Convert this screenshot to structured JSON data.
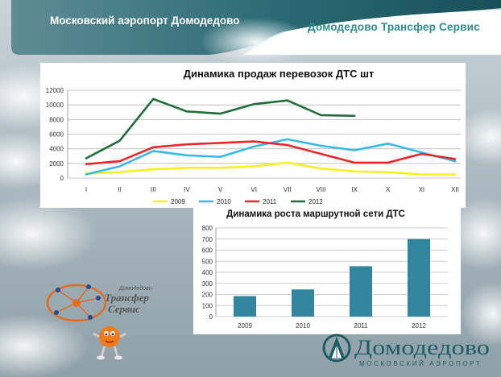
{
  "header": {
    "title": "Московский аэропорт Домодедово",
    "brand": "Домодедово Трансфер Сервис"
  },
  "logos": {
    "transfer_top": "Домодедово",
    "transfer_main_1": "Трансфер",
    "transfer_main_2": "Сервис",
    "airport_name": "Домодедово",
    "airport_sub": "Московский аэропорт"
  },
  "colors": {
    "header_band": "#1f5d66",
    "brand_text": "#2d8b8c",
    "bar_fill": "#31859c"
  },
  "chart_data": [
    {
      "type": "line",
      "title": "Динамика продаж перевозок  ДТС шт",
      "categories": [
        "I",
        "II",
        "III",
        "IV",
        "V",
        "VI",
        "VII",
        "VIII",
        "IX",
        "X",
        "XI",
        "XII"
      ],
      "ylim": [
        0,
        12000
      ],
      "yticks": [
        "0",
        "2000",
        "4000",
        "6000",
        "8000",
        "10000",
        "12000"
      ],
      "grid": true,
      "legend": "bottom",
      "series": [
        {
          "name": "2009",
          "color": "#f5f020",
          "values": [
            600,
            800,
            1200,
            1400,
            1400,
            1600,
            2100,
            1300,
            900,
            800,
            500,
            500
          ]
        },
        {
          "name": "2010",
          "color": "#36b8ea",
          "values": [
            500,
            1600,
            3700,
            3100,
            2900,
            4300,
            5300,
            4400,
            3800,
            4700,
            3500,
            2300
          ]
        },
        {
          "name": "2011",
          "color": "#e8272a",
          "values": [
            1900,
            2300,
            4200,
            4600,
            4800,
            5000,
            4500,
            3300,
            2100,
            2100,
            3300,
            2600
          ]
        },
        {
          "name": "2012",
          "color": "#1e6f3a",
          "values": [
            2700,
            5100,
            10800,
            9100,
            8800,
            10100,
            10600,
            8600,
            8500,
            null,
            null,
            null
          ]
        }
      ]
    },
    {
      "type": "bar",
      "title": "Динамика роста маршрутной сети  ДТС",
      "categories": [
        "2009",
        "2010",
        "2011",
        "2012"
      ],
      "values": [
        185,
        245,
        455,
        700
      ],
      "ylim": [
        0,
        800
      ],
      "yticks": [
        "0",
        "100",
        "200",
        "300",
        "400",
        "500",
        "600",
        "700",
        "800"
      ],
      "grid": true,
      "color": "#31859c"
    }
  ]
}
